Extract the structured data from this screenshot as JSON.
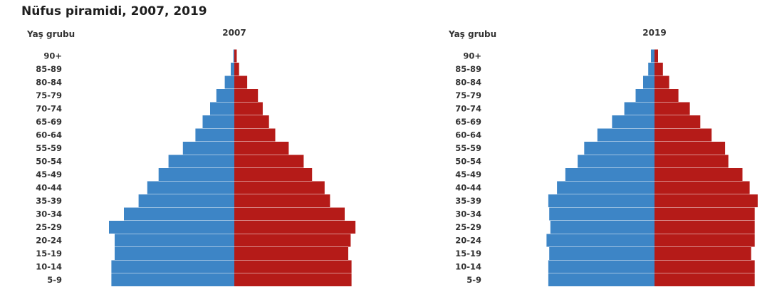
{
  "title": "Nüfus piramidi, 2007, 2019",
  "chart_data": [
    {
      "type": "bar",
      "orientation": "horizontal",
      "title": "2007",
      "ylabel": "Yaş grubu",
      "categories": [
        "90+",
        "85-89",
        "80-84",
        "75-79",
        "70-74",
        "65-69",
        "60-64",
        "55-59",
        "50-54",
        "45-49",
        "40-44",
        "35-39",
        "30-34",
        "25-29",
        "20-24",
        "15-19",
        "10-14",
        "5-9"
      ],
      "series": [
        {
          "side": "left",
          "color": "#3d85c6",
          "values": [
            0.3,
            1.2,
            3.2,
            6.0,
            8.1,
            10.6,
            13.0,
            17.2,
            22.0,
            25.3,
            29.1,
            32.0,
            36.9,
            41.9,
            40.0,
            40.0,
            41.1,
            41.1
          ]
        },
        {
          "side": "right",
          "color": "#b51b18",
          "values": [
            0.8,
            1.6,
            4.3,
            7.9,
            9.5,
            11.6,
            13.7,
            18.2,
            23.2,
            26.0,
            30.2,
            32.0,
            36.9,
            40.5,
            38.9,
            38.1,
            39.2,
            39.2
          ]
        }
      ],
      "xlim": [
        -45,
        45
      ]
    },
    {
      "type": "bar",
      "orientation": "horizontal",
      "title": "2019",
      "ylabel": "Yaş grubu",
      "categories": [
        "90+",
        "85-89",
        "80-84",
        "75-79",
        "70-74",
        "65-69",
        "60-64",
        "55-59",
        "50-54",
        "45-49",
        "40-44",
        "35-39",
        "30-34",
        "25-29",
        "20-24",
        "15-19",
        "10-14",
        "5-9"
      ],
      "series": [
        {
          "side": "left",
          "color": "#3d85c6",
          "values": [
            1.2,
            2.1,
            3.8,
            6.3,
            10.1,
            14.2,
            19.1,
            23.5,
            25.7,
            29.8,
            32.6,
            35.5,
            35.2,
            34.8,
            36.1,
            35.2,
            35.5,
            35.5
          ]
        },
        {
          "side": "right",
          "color": "#b51b18",
          "values": [
            1.2,
            2.8,
            4.9,
            8.0,
            11.8,
            15.3,
            19.1,
            23.6,
            24.7,
            29.4,
            31.8,
            34.5,
            33.5,
            33.5,
            33.5,
            32.3,
            33.5,
            33.5
          ]
        }
      ],
      "xlim": [
        -45,
        45
      ]
    }
  ]
}
